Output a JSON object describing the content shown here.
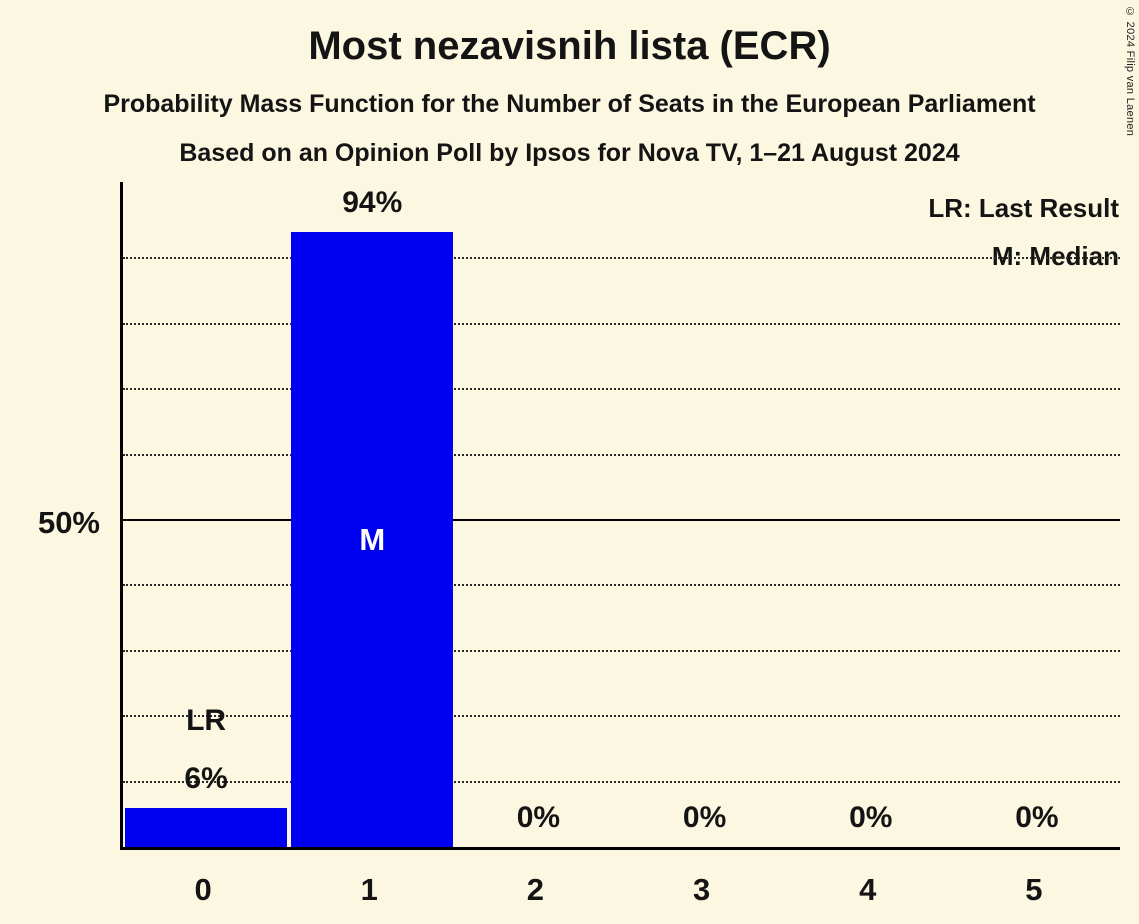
{
  "chart_data": {
    "type": "bar",
    "title": "Most nezavisnih lista (ECR)",
    "subtitle": "Probability Mass Function for the Number of Seats in the European Parliament",
    "source_line": "Based on an Opinion Poll by Ipsos for Nova TV, 1–21 August 2024",
    "categories": [
      "0",
      "1",
      "2",
      "3",
      "4",
      "5"
    ],
    "values": [
      6,
      94,
      0,
      0,
      0,
      0
    ],
    "value_labels": [
      "6%",
      "94%",
      "0%",
      "0%",
      "0%",
      "0%"
    ],
    "xlabel": "",
    "ylabel": "",
    "ylim": [
      0,
      100
    ],
    "y_axis": {
      "mid_label": "50%",
      "solid_line_value": 50,
      "gridline_step": 10
    },
    "grid": "dotted horizontal gridlines every 10%, solid line at 50%",
    "legend_position": "top-right",
    "legend": {
      "last_result": "LR: Last Result",
      "median": "M: Median"
    },
    "annotations": {
      "last_result": {
        "bar_index": 0,
        "label": "LR"
      },
      "median": {
        "bar_index": 1,
        "label": "M"
      }
    },
    "bar_color": "#0000F0",
    "background_color": "#FCF7E1",
    "text_color": "#141414",
    "copyright": "© 2024 Filip van Laenen"
  }
}
